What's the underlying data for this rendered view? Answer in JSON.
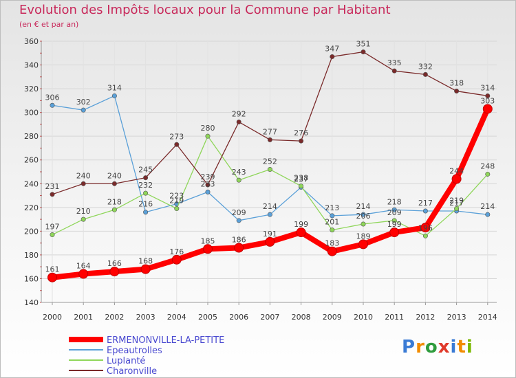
{
  "title": "Evolution des Impôts locaux pour la Commune par Habitant",
  "subtitle": "(en € et par an)",
  "logo": {
    "text": "Proxiti",
    "letters": [
      "P",
      "r",
      "o",
      "x",
      "i",
      "t",
      "i"
    ],
    "colors": [
      "#3a7bd5",
      "#f28c00",
      "#2f9c3d",
      "#e03a2b",
      "#3a7bd5",
      "#f28c00",
      "#7ab800"
    ]
  },
  "chart_data": {
    "type": "line",
    "title": "Evolution des Impôts locaux pour la Commune par Habitant",
    "subtitle": "(en € et par an)",
    "xlabel": "",
    "ylabel": "",
    "categories": [
      "2000",
      "2001",
      "2002",
      "2003",
      "2004",
      "2005",
      "2006",
      "2007",
      "2008",
      "2009",
      "2010",
      "2011",
      "2012",
      "2013",
      "2014"
    ],
    "ylim": [
      140,
      360
    ],
    "yticks": [
      140,
      160,
      180,
      200,
      220,
      240,
      260,
      280,
      300,
      320,
      340,
      360
    ],
    "grid": true,
    "legend_position": "bottom",
    "series": [
      {
        "name": "ERMENONVILLE-LA-PETITE",
        "color": "#ff0000",
        "thick": true,
        "values": [
          161,
          164,
          166,
          168,
          176,
          185,
          186,
          191,
          199,
          183,
          189,
          199,
          203,
          244,
          303
        ],
        "labels": [
          "161",
          "164",
          "166",
          "168",
          "176",
          "185",
          "186",
          "191",
          "199",
          "183",
          "189",
          "199",
          "",
          "244",
          "303"
        ]
      },
      {
        "name": "Epeautrolles",
        "color": "#5aa0d8",
        "values": [
          306,
          302,
          314,
          216,
          223,
          233,
          209,
          214,
          237,
          213,
          214,
          218,
          217,
          217,
          214
        ],
        "labels": [
          "306",
          "302",
          "314",
          "216",
          "223",
          "233",
          "209",
          "214",
          "237",
          "213",
          "214",
          "218",
          "217",
          "217",
          "214"
        ]
      },
      {
        "name": "Luplanté",
        "color": "#8fd65a",
        "values": [
          197,
          210,
          218,
          232,
          219,
          280,
          243,
          252,
          238,
          201,
          206,
          209,
          196,
          219,
          248
        ],
        "labels": [
          "197",
          "210",
          "218",
          "232",
          "219",
          "280",
          "243",
          "252",
          "238",
          "201",
          "206",
          "209",
          "196",
          "219",
          "248"
        ]
      },
      {
        "name": "Charonville",
        "color": "#7a2a2a",
        "values": [
          231,
          240,
          240,
          245,
          273,
          239,
          292,
          277,
          276,
          347,
          351,
          335,
          332,
          318,
          314
        ],
        "labels": [
          "231",
          "240",
          "240",
          "245",
          "273",
          "239",
          "292",
          "277",
          "276",
          "347",
          "351",
          "335",
          "332",
          "318",
          "314"
        ]
      }
    ]
  }
}
